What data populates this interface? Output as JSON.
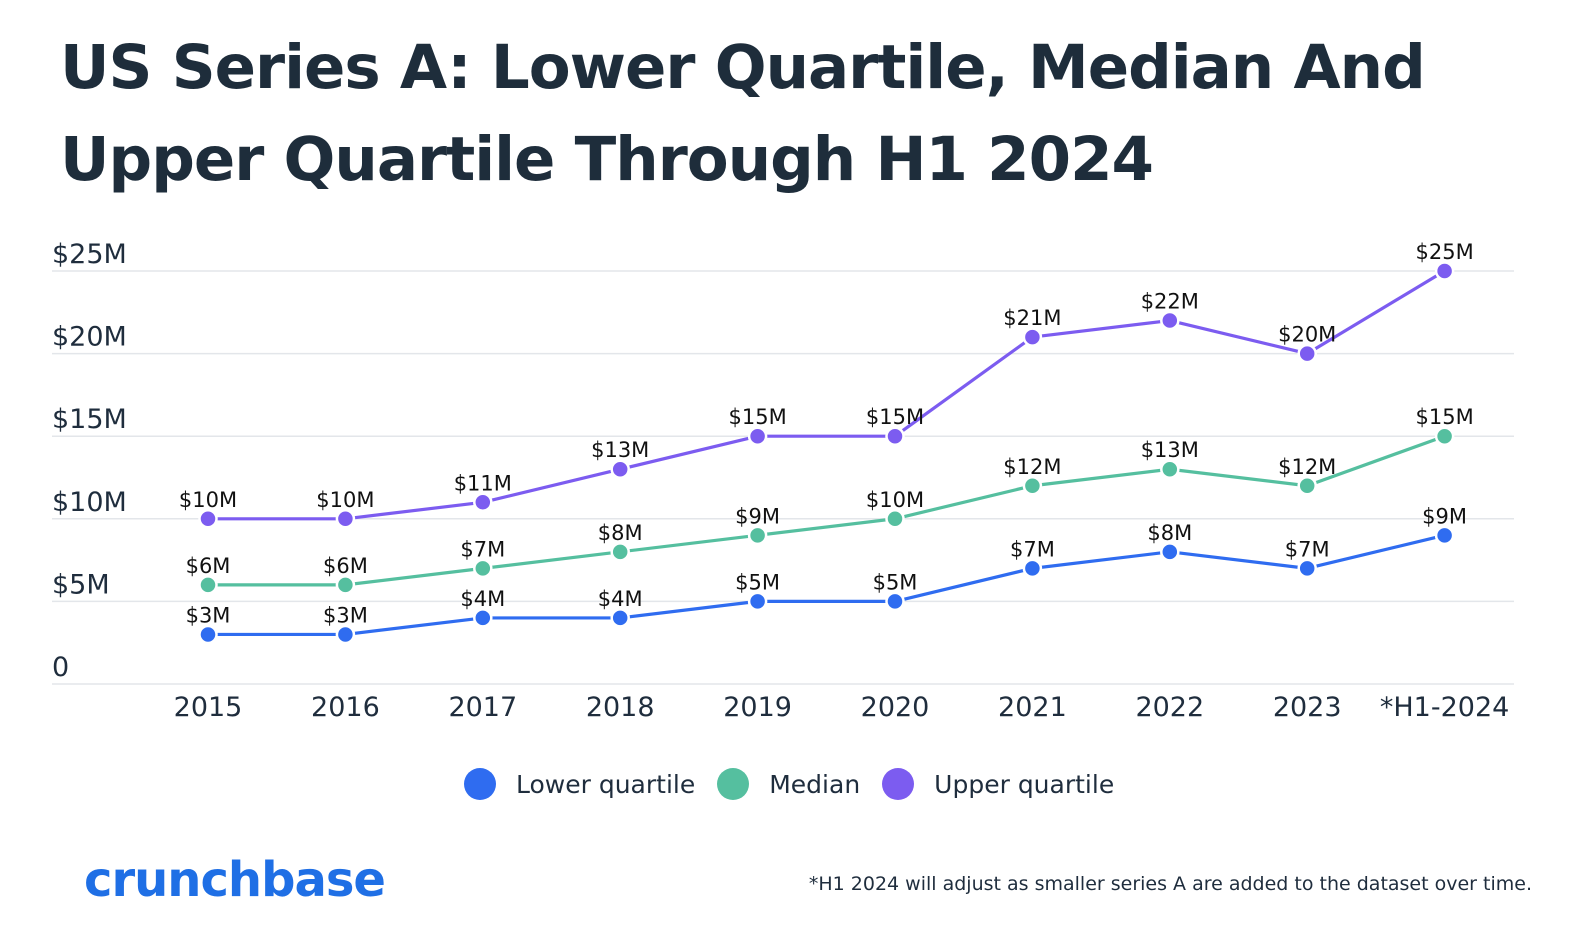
{
  "title": "US Series A: Lower Quartile, Median And Upper Quartile Through H1 2024",
  "brand": "crunchbase",
  "footnote": "*H1 2024 will adjust as smaller series A are added to the dataset over time.",
  "colors": {
    "lower_quartile": "#2f6cf0",
    "median": "#55bf9f",
    "upper_quartile": "#7c5cf0",
    "grid": "#e3e6ea",
    "text": "#1f2d3d",
    "brand": "#1f6fe5"
  },
  "chart_data": {
    "type": "line",
    "title": "US Series A: Lower Quartile, Median And Upper Quartile Through H1 2024",
    "xlabel": "",
    "ylabel": "",
    "ylim": [
      0,
      25
    ],
    "yticks": [
      0,
      5,
      10,
      15,
      20,
      25
    ],
    "ytick_labels": [
      "0",
      "$5M",
      "$10M",
      "$15M",
      "$20M",
      "$25M"
    ],
    "categories": [
      "2015",
      "2016",
      "2017",
      "2018",
      "2019",
      "2020",
      "2021",
      "2022",
      "2023",
      "*H1-2024"
    ],
    "grid": true,
    "legend_position": "bottom-center",
    "series": [
      {
        "name": "Lower quartile",
        "color": "#2f6cf0",
        "values": [
          3,
          3,
          4,
          4,
          5,
          5,
          7,
          8,
          7,
          9
        ],
        "labels": [
          "$3M",
          "$3M",
          "$4M",
          "$4M",
          "$5M",
          "$5M",
          "$7M",
          "$8M",
          "$7M",
          "$9M"
        ]
      },
      {
        "name": "Median",
        "color": "#55bf9f",
        "values": [
          6,
          6,
          7,
          8,
          9,
          10,
          12,
          13,
          12,
          15
        ],
        "labels": [
          "$6M",
          "$6M",
          "$7M",
          "$8M",
          "$9M",
          "$10M",
          "$12M",
          "$13M",
          "$12M",
          "$15M"
        ]
      },
      {
        "name": "Upper quartile",
        "color": "#7c5cf0",
        "values": [
          10,
          10,
          11,
          13,
          15,
          15,
          21,
          22,
          20,
          25
        ],
        "labels": [
          "$10M",
          "$10M",
          "$11M",
          "$13M",
          "$15M",
          "$15M",
          "$21M",
          "$22M",
          "$20M",
          "$25M"
        ]
      }
    ]
  }
}
